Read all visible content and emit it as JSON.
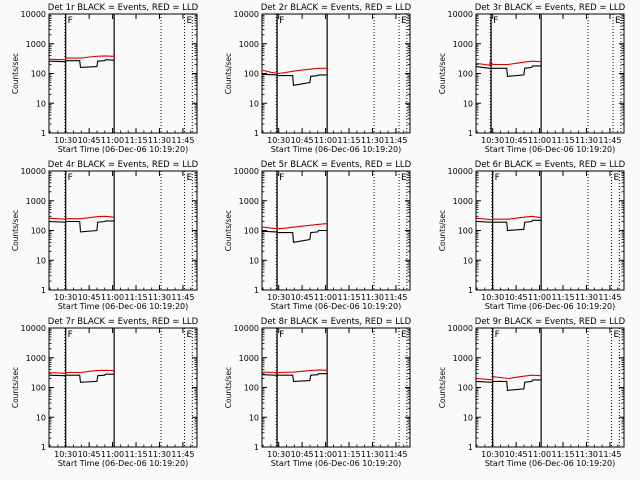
{
  "figure": {
    "background": "#fafafa"
  },
  "chart_data": [
    {
      "type": "line",
      "title": "Det 1r BLACK = Events, RED = LLD",
      "ylabel": "Counts/sec",
      "xlabel": "Start Time (06-Dec-06 10:19:20)",
      "yscale": "log",
      "ylim": [
        1,
        10000
      ],
      "y_ticks": [
        "1",
        "10",
        "100",
        "1000",
        "10000"
      ],
      "xlim": [
        "10:19:20",
        "11:54:00"
      ],
      "x_ticks": [
        "10:30",
        "10:45",
        "11:00",
        "11:15",
        "11:30",
        "11:45"
      ],
      "markers": [
        {
          "label": "F",
          "time": "10:30:00",
          "style": "solid"
        },
        {
          "label": "",
          "time": "10:29:30",
          "style": "dotted"
        },
        {
          "label": "",
          "time": "11:01:00",
          "style": "solid"
        },
        {
          "label": "",
          "time": "11:31:00",
          "style": "dotted"
        },
        {
          "label": "E",
          "time": "11:46:00",
          "style": "dotted"
        },
        {
          "label": "",
          "time": "11:51:00",
          "style": "dotted"
        }
      ],
      "series": [
        {
          "color": "#dd0000",
          "x": [
            "10:19:20",
            "10:29:30",
            "10:30:30",
            "10:40:00",
            "10:45:00",
            "10:50:00",
            "10:55:00",
            "11:01:00"
          ],
          "y": [
            300,
            290,
            330,
            330,
            360,
            380,
            390,
            380
          ]
        },
        {
          "color": "#000000",
          "x": [
            "10:19:20",
            "10:29:30",
            "10:30:30",
            "10:39:00",
            "10:39:30",
            "10:50:00",
            "10:50:30",
            "10:55:00",
            "10:55:30",
            "11:01:00"
          ],
          "y": [
            260,
            250,
            270,
            270,
            160,
            170,
            260,
            270,
            290,
            280
          ]
        }
      ]
    },
    {
      "type": "line",
      "title": "Det 2r BLACK = Events, RED = LLD",
      "ylabel": "Counts/sec",
      "xlabel": "Start Time (06-Dec-06 10:19:20)",
      "yscale": "log",
      "ylim": [
        1,
        10000
      ],
      "y_ticks": [
        "1",
        "10",
        "100",
        "1000",
        "10000"
      ],
      "xlim": [
        "10:19:20",
        "11:54:00"
      ],
      "x_ticks": [
        "10:30",
        "10:45",
        "11:00",
        "11:15",
        "11:30",
        "11:45"
      ],
      "markers": [
        {
          "label": "F",
          "time": "10:29:00",
          "style": "solid"
        },
        {
          "label": "",
          "time": "10:28:30",
          "style": "dotted"
        },
        {
          "label": "",
          "time": "11:01:00",
          "style": "solid"
        },
        {
          "label": "",
          "time": "11:31:00",
          "style": "dotted"
        },
        {
          "label": "E",
          "time": "11:47:00",
          "style": "dotted"
        },
        {
          "label": "",
          "time": "11:52:00",
          "style": "dotted"
        }
      ],
      "series": [
        {
          "color": "#dd0000",
          "x": [
            "10:19:20",
            "10:25:00",
            "10:30:00",
            "10:35:00",
            "10:40:00",
            "10:45:00",
            "10:50:00",
            "10:55:00",
            "11:01:00"
          ],
          "y": [
            130,
            110,
            100,
            110,
            120,
            130,
            140,
            150,
            150
          ]
        },
        {
          "color": "#000000",
          "x": [
            "10:19:20",
            "10:28:00",
            "10:30:00",
            "10:39:00",
            "10:39:30",
            "10:50:00",
            "10:50:30",
            "10:55:00",
            "10:55:30",
            "11:01:00"
          ],
          "y": [
            95,
            90,
            85,
            85,
            40,
            50,
            80,
            85,
            90,
            90
          ]
        }
      ]
    },
    {
      "type": "line",
      "title": "Det 3r BLACK = Events, RED = LLD",
      "ylabel": "Counts/sec",
      "xlabel": "Start Time (06-Dec-06 10:19:20)",
      "yscale": "log",
      "ylim": [
        1,
        10000
      ],
      "y_ticks": [
        "1",
        "10",
        "100",
        "1000",
        "10000"
      ],
      "xlim": [
        "10:19:20",
        "11:54:00"
      ],
      "x_ticks": [
        "10:30",
        "10:45",
        "11:00",
        "11:15",
        "11:30",
        "11:45"
      ],
      "markers": [
        {
          "label": "F",
          "time": "10:29:00",
          "style": "solid"
        },
        {
          "label": "",
          "time": "10:28:30",
          "style": "dotted"
        },
        {
          "label": "",
          "time": "11:01:00",
          "style": "solid"
        },
        {
          "label": "",
          "time": "11:31:00",
          "style": "dotted"
        },
        {
          "label": "E",
          "time": "11:47:00",
          "style": "dotted"
        },
        {
          "label": "",
          "time": "11:52:00",
          "style": "dotted"
        }
      ],
      "series": [
        {
          "color": "#dd0000",
          "x": [
            "10:19:20",
            "10:25:00",
            "10:28:00",
            "10:28:30",
            "10:30:00",
            "10:40:00",
            "10:45:00",
            "10:50:00",
            "10:55:00",
            "11:01:00"
          ],
          "y": [
            220,
            200,
            190,
            260,
            200,
            200,
            220,
            240,
            260,
            250
          ]
        },
        {
          "color": "#000000",
          "x": [
            "10:19:20",
            "10:28:00",
            "10:30:00",
            "10:39:00",
            "10:39:30",
            "10:50:00",
            "10:50:30",
            "10:55:00",
            "10:55:30",
            "11:01:00"
          ],
          "y": [
            170,
            150,
            150,
            150,
            80,
            90,
            150,
            160,
            180,
            180
          ]
        }
      ]
    },
    {
      "type": "line",
      "title": "Det 4r BLACK = Events, RED = LLD",
      "ylabel": "Counts/sec",
      "xlabel": "Start Time (06-Dec-06 10:19:20)",
      "yscale": "log",
      "ylim": [
        1,
        10000
      ],
      "y_ticks": [
        "1",
        "10",
        "100",
        "1000",
        "10000"
      ],
      "xlim": [
        "10:19:20",
        "11:54:00"
      ],
      "x_ticks": [
        "10:30",
        "10:45",
        "11:00",
        "11:15",
        "11:30",
        "11:45"
      ],
      "markers": [
        {
          "label": "F",
          "time": "10:30:00",
          "style": "solid"
        },
        {
          "label": "",
          "time": "10:29:30",
          "style": "dotted"
        },
        {
          "label": "",
          "time": "11:01:00",
          "style": "solid"
        },
        {
          "label": "",
          "time": "11:31:00",
          "style": "dotted"
        },
        {
          "label": "E",
          "time": "11:46:00",
          "style": "dotted"
        },
        {
          "label": "",
          "time": "11:51:00",
          "style": "dotted"
        }
      ],
      "series": [
        {
          "color": "#dd0000",
          "x": [
            "10:19:20",
            "10:29:30",
            "10:30:30",
            "10:40:00",
            "10:45:00",
            "10:50:00",
            "10:55:00",
            "11:01:00"
          ],
          "y": [
            260,
            240,
            250,
            250,
            270,
            290,
            300,
            280
          ]
        },
        {
          "color": "#000000",
          "x": [
            "10:19:20",
            "10:29:30",
            "10:30:30",
            "10:39:00",
            "10:39:30",
            "10:50:00",
            "10:50:30",
            "10:55:00",
            "10:55:30",
            "11:01:00"
          ],
          "y": [
            200,
            190,
            200,
            200,
            90,
            100,
            190,
            200,
            210,
            210
          ]
        }
      ]
    },
    {
      "type": "line",
      "title": "Det 5r BLACK = Events, RED = LLD",
      "ylabel": "Counts/sec",
      "xlabel": "Start Time (06-Dec-06 10:19:20)",
      "yscale": "log",
      "ylim": [
        1,
        10000
      ],
      "y_ticks": [
        "1",
        "10",
        "100",
        "1000",
        "10000"
      ],
      "xlim": [
        "10:19:20",
        "11:54:00"
      ],
      "x_ticks": [
        "10:30",
        "10:45",
        "11:00",
        "11:15",
        "11:30",
        "11:45"
      ],
      "markers": [
        {
          "label": "F",
          "time": "10:29:00",
          "style": "solid"
        },
        {
          "label": "",
          "time": "10:28:30",
          "style": "dotted"
        },
        {
          "label": "",
          "time": "11:01:00",
          "style": "solid"
        },
        {
          "label": "",
          "time": "11:31:00",
          "style": "dotted"
        },
        {
          "label": "E",
          "time": "11:47:00",
          "style": "dotted"
        },
        {
          "label": "",
          "time": "11:52:00",
          "style": "dotted"
        }
      ],
      "series": [
        {
          "color": "#dd0000",
          "x": [
            "10:19:20",
            "10:25:00",
            "10:30:00",
            "10:35:00",
            "10:40:00",
            "10:45:00",
            "10:50:00",
            "10:55:00",
            "11:01:00"
          ],
          "y": [
            130,
            120,
            115,
            120,
            130,
            140,
            150,
            160,
            170
          ]
        },
        {
          "color": "#000000",
          "x": [
            "10:19:20",
            "10:28:00",
            "10:30:00",
            "10:39:00",
            "10:39:30",
            "10:50:00",
            "10:50:30",
            "10:55:00",
            "10:55:30",
            "11:01:00"
          ],
          "y": [
            95,
            90,
            85,
            85,
            40,
            50,
            85,
            90,
            100,
            100
          ]
        }
      ]
    },
    {
      "type": "line",
      "title": "Det 6r BLACK = Events, RED = LLD",
      "ylabel": "Counts/sec",
      "xlabel": "Start Time (06-Dec-06 10:19:20)",
      "yscale": "log",
      "ylim": [
        1,
        10000
      ],
      "y_ticks": [
        "1",
        "10",
        "100",
        "1000",
        "10000"
      ],
      "xlim": [
        "10:19:20",
        "11:54:00"
      ],
      "x_ticks": [
        "10:30",
        "10:45",
        "11:00",
        "11:15",
        "11:30",
        "11:45"
      ],
      "markers": [
        {
          "label": "F",
          "time": "10:30:00",
          "style": "solid"
        },
        {
          "label": "",
          "time": "10:29:30",
          "style": "dotted"
        },
        {
          "label": "",
          "time": "11:01:00",
          "style": "solid"
        },
        {
          "label": "",
          "time": "11:31:00",
          "style": "dotted"
        },
        {
          "label": "E",
          "time": "11:46:00",
          "style": "dotted"
        },
        {
          "label": "",
          "time": "11:51:00",
          "style": "dotted"
        }
      ],
      "series": [
        {
          "color": "#dd0000",
          "x": [
            "10:19:20",
            "10:29:30",
            "10:30:30",
            "10:40:00",
            "10:45:00",
            "10:50:00",
            "10:55:00",
            "11:01:00"
          ],
          "y": [
            260,
            230,
            240,
            240,
            260,
            280,
            300,
            270
          ]
        },
        {
          "color": "#000000",
          "x": [
            "10:19:20",
            "10:29:30",
            "10:30:30",
            "10:39:00",
            "10:39:30",
            "10:50:00",
            "10:50:30",
            "10:55:00",
            "10:55:30",
            "11:01:00"
          ],
          "y": [
            200,
            190,
            190,
            190,
            100,
            110,
            190,
            200,
            220,
            220
          ]
        }
      ]
    },
    {
      "type": "line",
      "title": "Det 7r BLACK = Events, RED = LLD",
      "ylabel": "Counts/sec",
      "xlabel": "Start Time (06-Dec-06 10:19:20)",
      "yscale": "log",
      "ylim": [
        1,
        10000
      ],
      "y_ticks": [
        "1",
        "10",
        "100",
        "1000",
        "10000"
      ],
      "xlim": [
        "10:19:20",
        "11:54:00"
      ],
      "x_ticks": [
        "10:30",
        "10:45",
        "11:00",
        "11:15",
        "11:30",
        "11:45"
      ],
      "markers": [
        {
          "label": "F",
          "time": "10:30:00",
          "style": "solid"
        },
        {
          "label": "",
          "time": "10:29:30",
          "style": "dotted"
        },
        {
          "label": "",
          "time": "11:01:00",
          "style": "solid"
        },
        {
          "label": "",
          "time": "11:31:00",
          "style": "dotted"
        },
        {
          "label": "E",
          "time": "11:46:00",
          "style": "dotted"
        },
        {
          "label": "",
          "time": "11:51:00",
          "style": "dotted"
        }
      ],
      "series": [
        {
          "color": "#dd0000",
          "x": [
            "10:19:20",
            "10:29:30",
            "10:30:30",
            "10:40:00",
            "10:45:00",
            "10:50:00",
            "10:55:00",
            "11:01:00"
          ],
          "y": [
            320,
            300,
            320,
            320,
            350,
            370,
            380,
            370
          ]
        },
        {
          "color": "#000000",
          "x": [
            "10:19:20",
            "10:29:30",
            "10:30:30",
            "10:39:00",
            "10:39:30",
            "10:50:00",
            "10:50:30",
            "10:55:00",
            "10:55:30",
            "11:01:00"
          ],
          "y": [
            260,
            250,
            260,
            260,
            150,
            160,
            250,
            260,
            280,
            280
          ]
        }
      ]
    },
    {
      "type": "line",
      "title": "Det 8r BLACK = Events, RED = LLD",
      "ylabel": "Counts/sec",
      "xlabel": "Start Time (06-Dec-06 10:19:20)",
      "yscale": "log",
      "ylim": [
        1,
        10000
      ],
      "y_ticks": [
        "1",
        "10",
        "100",
        "1000",
        "10000"
      ],
      "xlim": [
        "10:19:20",
        "11:54:00"
      ],
      "x_ticks": [
        "10:30",
        "10:45",
        "11:00",
        "11:15",
        "11:30",
        "11:45"
      ],
      "markers": [
        {
          "label": "F",
          "time": "10:29:00",
          "style": "solid"
        },
        {
          "label": "",
          "time": "10:28:30",
          "style": "dotted"
        },
        {
          "label": "",
          "time": "11:01:00",
          "style": "solid"
        },
        {
          "label": "",
          "time": "11:31:00",
          "style": "dotted"
        },
        {
          "label": "E",
          "time": "11:47:00",
          "style": "dotted"
        },
        {
          "label": "",
          "time": "11:52:00",
          "style": "dotted"
        }
      ],
      "series": [
        {
          "color": "#dd0000",
          "x": [
            "10:19:20",
            "10:28:00",
            "10:30:00",
            "10:40:00",
            "10:45:00",
            "10:50:00",
            "10:55:00",
            "11:01:00"
          ],
          "y": [
            330,
            320,
            320,
            330,
            350,
            370,
            390,
            380
          ]
        },
        {
          "color": "#000000",
          "x": [
            "10:19:20",
            "10:28:00",
            "10:30:00",
            "10:39:00",
            "10:39:30",
            "10:50:00",
            "10:50:30",
            "10:55:00",
            "10:55:30",
            "11:01:00"
          ],
          "y": [
            270,
            260,
            260,
            260,
            160,
            170,
            260,
            270,
            290,
            290
          ]
        }
      ]
    },
    {
      "type": "line",
      "title": "Det 9r BLACK = Events, RED = LLD",
      "ylabel": "Counts/sec",
      "xlabel": "Start Time (06-Dec-06 10:19:20)",
      "yscale": "log",
      "ylim": [
        1,
        10000
      ],
      "y_ticks": [
        "1",
        "10",
        "100",
        "1000",
        "10000"
      ],
      "xlim": [
        "10:19:20",
        "11:54:00"
      ],
      "x_ticks": [
        "10:30",
        "10:45",
        "11:00",
        "11:15",
        "11:30",
        "11:45"
      ],
      "markers": [
        {
          "label": "F",
          "time": "10:30:00",
          "style": "solid"
        },
        {
          "label": "",
          "time": "10:29:30",
          "style": "dotted"
        },
        {
          "label": "",
          "time": "11:01:00",
          "style": "solid"
        },
        {
          "label": "",
          "time": "11:31:00",
          "style": "dotted"
        },
        {
          "label": "E",
          "time": "11:46:00",
          "style": "dotted"
        },
        {
          "label": "",
          "time": "11:51:00",
          "style": "dotted"
        }
      ],
      "series": [
        {
          "color": "#dd0000",
          "x": [
            "10:19:20",
            "10:25:00",
            "10:29:30",
            "10:30:30",
            "10:40:00",
            "10:45:00",
            "10:50:00",
            "10:55:00",
            "11:01:00"
          ],
          "y": [
            200,
            190,
            180,
            230,
            200,
            220,
            240,
            260,
            250
          ]
        },
        {
          "color": "#000000",
          "x": [
            "10:19:20",
            "10:29:30",
            "10:30:30",
            "10:39:00",
            "10:39:30",
            "10:50:00",
            "10:50:30",
            "10:55:00",
            "10:55:30",
            "11:01:00"
          ],
          "y": [
            160,
            150,
            160,
            160,
            80,
            90,
            150,
            160,
            180,
            180
          ]
        }
      ]
    }
  ]
}
